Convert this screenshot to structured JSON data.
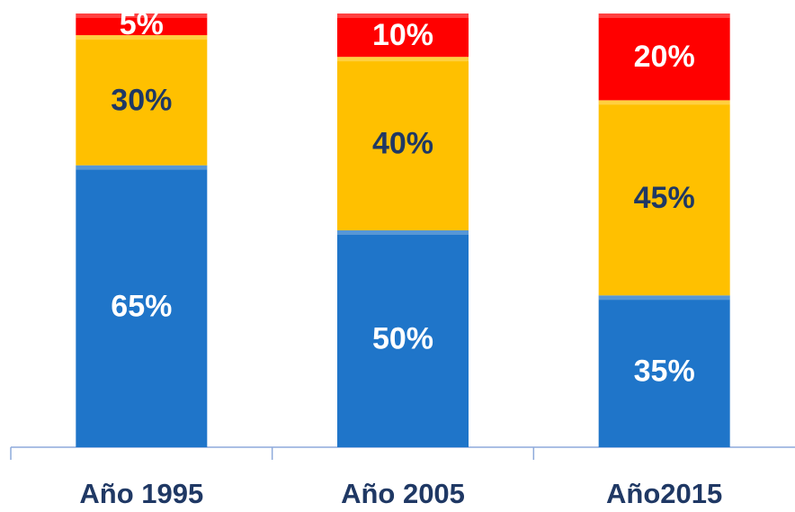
{
  "chart_data": {
    "type": "stacked_bar",
    "categories": [
      "Año 1995",
      "Año 2005",
      "Año2015"
    ],
    "series": [
      {
        "color": "#1f75c9",
        "label_color": "#ffffff",
        "values": [
          65,
          50,
          35
        ],
        "value_labels": [
          "65%",
          "50%",
          "35%"
        ]
      },
      {
        "color": "#ffc000",
        "label_color": "#1f3864",
        "values": [
          30,
          40,
          45
        ],
        "value_labels": [
          "30%",
          "40%",
          "45%"
        ]
      },
      {
        "color": "#ff0000",
        "label_color": "#ffffff",
        "values": [
          5,
          10,
          20
        ],
        "value_labels": [
          "5%",
          "10%",
          "20%"
        ]
      }
    ]
  }
}
